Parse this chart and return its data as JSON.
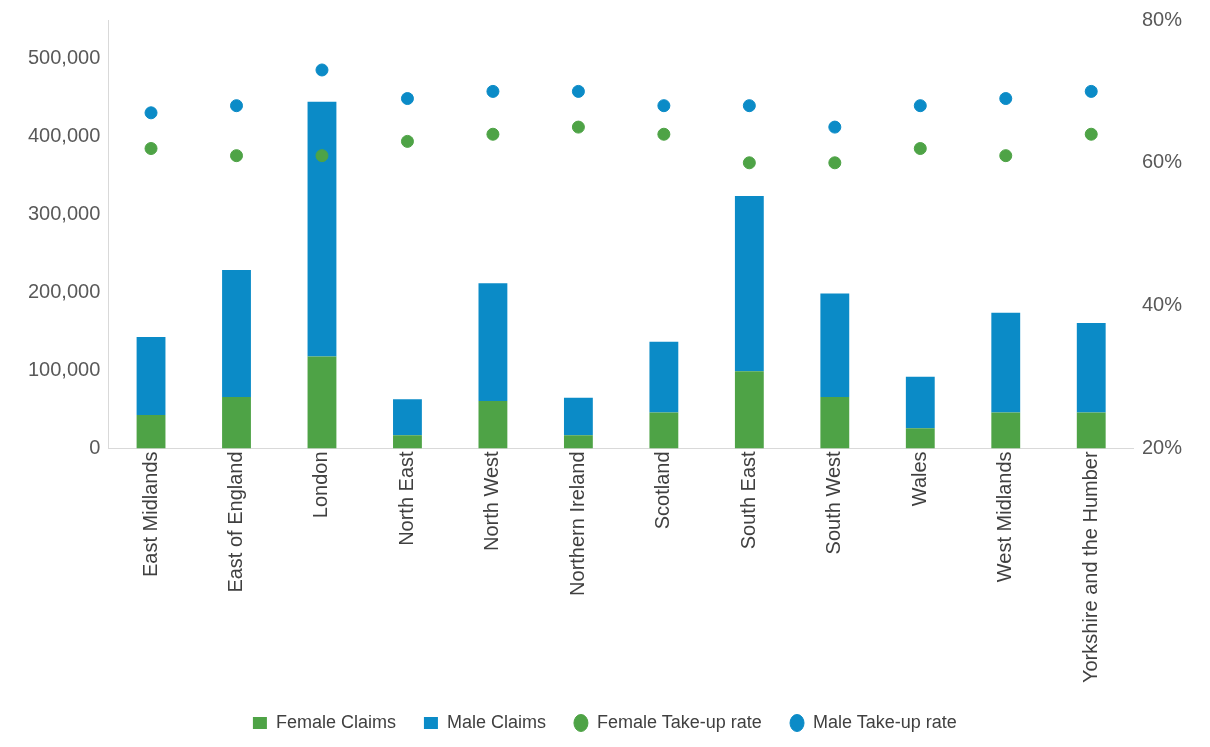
{
  "chart_data": {
    "type": "bar",
    "stacked": true,
    "categories": [
      "East Midlands",
      "East of England",
      "London",
      "North East",
      "North West",
      "Northern Ireland",
      "Scotland",
      "South East",
      "South West",
      "Wales",
      "West Midlands",
      "Yorkshire and the Humber"
    ],
    "series": [
      {
        "name": "Female Claims",
        "color": "#4ea346",
        "values": [
          43000,
          66000,
          118000,
          17000,
          61000,
          17000,
          46000,
          99000,
          66000,
          26000,
          46000,
          46000
        ]
      },
      {
        "name": "Male Claims",
        "color": "#0b8bc7",
        "values": [
          100000,
          163000,
          327000,
          46000,
          151000,
          48000,
          91000,
          225000,
          133000,
          66000,
          128000,
          115000
        ]
      },
      {
        "name": "Female Take-up rate",
        "type": "scatter",
        "axis": "y2",
        "color": "#4ea346",
        "values": [
          62,
          61,
          61,
          63,
          64,
          65,
          64,
          60,
          60,
          62,
          61,
          64
        ]
      },
      {
        "name": "Male Take-up rate",
        "type": "scatter",
        "axis": "y2",
        "color": "#0b8bc7",
        "values": [
          67,
          68,
          73,
          69,
          70,
          70,
          68,
          68,
          65,
          68,
          69,
          70
        ]
      }
    ],
    "ylim": [
      0,
      550000
    ],
    "yticks": [
      {
        "value": 0,
        "label": "0"
      },
      {
        "value": 100000,
        "label": "100,000"
      },
      {
        "value": 200000,
        "label": "200,000"
      },
      {
        "value": 300000,
        "label": "300,000"
      },
      {
        "value": 400000,
        "label": "400,000"
      },
      {
        "value": 500000,
        "label": "500,000"
      }
    ],
    "y2lim": [
      20,
      80
    ],
    "y2ticks": [
      {
        "value": 20,
        "label": "20%"
      },
      {
        "value": 40,
        "label": "40%"
      },
      {
        "value": 60,
        "label": "60%"
      },
      {
        "value": 80,
        "label": "80%"
      }
    ],
    "grid": false,
    "legend": "bottom",
    "marker": "circle"
  }
}
